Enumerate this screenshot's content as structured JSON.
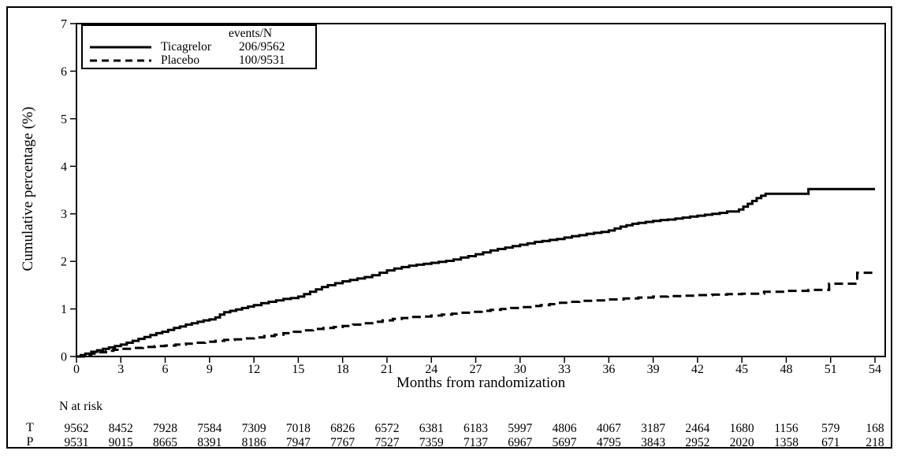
{
  "legend": {
    "header": "events/N",
    "items": [
      {
        "label": "Ticagrelor",
        "events_n": "206/9562",
        "line_style": "solid"
      },
      {
        "label": "Placebo",
        "events_n": "100/9531",
        "line_style": "dashed"
      }
    ]
  },
  "colors": {
    "line": "#000000",
    "text": "#000000",
    "background": "#ffffff",
    "border": "#000000"
  },
  "chart_data": {
    "type": "line",
    "step": true,
    "title": "",
    "xlabel": "Months from randomization",
    "ylabel": "Cumulative percentage (%)",
    "xlim": [
      0,
      54.7
    ],
    "ylim": [
      0,
      7
    ],
    "xticks": [
      0,
      3,
      6,
      9,
      12,
      15,
      18,
      21,
      24,
      27,
      30,
      33,
      36,
      39,
      42,
      45,
      48,
      51,
      54
    ],
    "yticks": [
      0,
      1,
      2,
      3,
      4,
      5,
      6,
      7
    ],
    "grid": false,
    "legend_position": "top-left",
    "series": [
      {
        "name": "Ticagrelor",
        "line_style": "solid",
        "events_n": "206/9562",
        "points": [
          [
            0,
            0
          ],
          [
            0.3,
            0.03
          ],
          [
            0.6,
            0.06
          ],
          [
            1,
            0.1
          ],
          [
            1.4,
            0.13
          ],
          [
            1.8,
            0.16
          ],
          [
            2.2,
            0.19
          ],
          [
            2.6,
            0.22
          ],
          [
            3,
            0.25
          ],
          [
            3.4,
            0.29
          ],
          [
            3.8,
            0.33
          ],
          [
            4.2,
            0.37
          ],
          [
            4.6,
            0.41
          ],
          [
            5,
            0.45
          ],
          [
            5.4,
            0.49
          ],
          [
            5.8,
            0.52
          ],
          [
            6.2,
            0.56
          ],
          [
            6.6,
            0.6
          ],
          [
            7,
            0.63
          ],
          [
            7.4,
            0.67
          ],
          [
            7.8,
            0.7
          ],
          [
            8.2,
            0.73
          ],
          [
            8.6,
            0.76
          ],
          [
            9,
            0.78
          ],
          [
            9.4,
            0.82
          ],
          [
            9.7,
            0.88
          ],
          [
            10,
            0.93
          ],
          [
            10.4,
            0.96
          ],
          [
            10.8,
            0.99
          ],
          [
            11.2,
            1.02
          ],
          [
            11.6,
            1.05
          ],
          [
            12,
            1.08
          ],
          [
            12.5,
            1.12
          ],
          [
            13,
            1.15
          ],
          [
            13.5,
            1.18
          ],
          [
            14,
            1.21
          ],
          [
            14.5,
            1.23
          ],
          [
            15,
            1.26
          ],
          [
            15.4,
            1.31
          ],
          [
            15.8,
            1.36
          ],
          [
            16.2,
            1.41
          ],
          [
            16.6,
            1.46
          ],
          [
            17,
            1.5
          ],
          [
            17.5,
            1.54
          ],
          [
            18,
            1.58
          ],
          [
            18.5,
            1.61
          ],
          [
            19,
            1.64
          ],
          [
            19.5,
            1.67
          ],
          [
            20,
            1.71
          ],
          [
            20.5,
            1.76
          ],
          [
            21,
            1.81
          ],
          [
            21.5,
            1.85
          ],
          [
            22,
            1.88
          ],
          [
            22.5,
            1.91
          ],
          [
            23,
            1.93
          ],
          [
            23.5,
            1.95
          ],
          [
            24,
            1.97
          ],
          [
            24.5,
            1.99
          ],
          [
            25,
            2.01
          ],
          [
            25.5,
            2.04
          ],
          [
            26,
            2.08
          ],
          [
            26.5,
            2.11
          ],
          [
            27,
            2.15
          ],
          [
            27.5,
            2.19
          ],
          [
            28,
            2.23
          ],
          [
            28.5,
            2.26
          ],
          [
            29,
            2.29
          ],
          [
            29.5,
            2.32
          ],
          [
            30,
            2.35
          ],
          [
            30.5,
            2.38
          ],
          [
            31,
            2.41
          ],
          [
            31.5,
            2.43
          ],
          [
            32,
            2.45
          ],
          [
            32.5,
            2.47
          ],
          [
            33,
            2.5
          ],
          [
            33.5,
            2.53
          ],
          [
            34,
            2.55
          ],
          [
            34.5,
            2.58
          ],
          [
            35,
            2.6
          ],
          [
            35.5,
            2.62
          ],
          [
            36,
            2.65
          ],
          [
            36.4,
            2.69
          ],
          [
            36.8,
            2.73
          ],
          [
            37.2,
            2.76
          ],
          [
            37.6,
            2.79
          ],
          [
            38,
            2.81
          ],
          [
            38.5,
            2.83
          ],
          [
            39,
            2.85
          ],
          [
            39.5,
            2.87
          ],
          [
            40,
            2.88
          ],
          [
            40.5,
            2.9
          ],
          [
            41,
            2.92
          ],
          [
            41.5,
            2.94
          ],
          [
            42,
            2.96
          ],
          [
            42.5,
            2.98
          ],
          [
            43,
            3.0
          ],
          [
            43.5,
            3.02
          ],
          [
            44,
            3.05
          ],
          [
            44.8,
            3.09
          ],
          [
            45.1,
            3.15
          ],
          [
            45.4,
            3.21
          ],
          [
            45.7,
            3.27
          ],
          [
            46,
            3.33
          ],
          [
            46.3,
            3.38
          ],
          [
            46.6,
            3.42
          ],
          [
            49.5,
            3.52
          ],
          [
            54,
            3.52
          ]
        ]
      },
      {
        "name": "Placebo",
        "line_style": "dashed",
        "events_n": "100/9531",
        "points": [
          [
            0,
            0
          ],
          [
            0.5,
            0.03
          ],
          [
            1,
            0.06
          ],
          [
            1.5,
            0.09
          ],
          [
            2,
            0.12
          ],
          [
            2.5,
            0.14
          ],
          [
            3,
            0.16
          ],
          [
            3.7,
            0.18
          ],
          [
            4.5,
            0.2
          ],
          [
            5.3,
            0.22
          ],
          [
            6,
            0.23
          ],
          [
            6.7,
            0.25
          ],
          [
            7.4,
            0.27
          ],
          [
            8,
            0.29
          ],
          [
            8.7,
            0.31
          ],
          [
            9.4,
            0.33
          ],
          [
            10,
            0.35
          ],
          [
            10.7,
            0.36
          ],
          [
            11.4,
            0.38
          ],
          [
            12,
            0.4
          ],
          [
            12.7,
            0.43
          ],
          [
            13.4,
            0.46
          ],
          [
            14,
            0.49
          ],
          [
            14.7,
            0.52
          ],
          [
            15.4,
            0.55
          ],
          [
            16,
            0.58
          ],
          [
            16.7,
            0.6
          ],
          [
            17.4,
            0.62
          ],
          [
            18,
            0.64
          ],
          [
            18.7,
            0.67
          ],
          [
            19.4,
            0.7
          ],
          [
            20,
            0.73
          ],
          [
            20.7,
            0.76
          ],
          [
            21.4,
            0.79
          ],
          [
            22,
            0.81
          ],
          [
            22.7,
            0.83
          ],
          [
            23.4,
            0.84
          ],
          [
            24,
            0.86
          ],
          [
            24.7,
            0.88
          ],
          [
            25.4,
            0.9
          ],
          [
            26,
            0.92
          ],
          [
            26.7,
            0.94
          ],
          [
            27.4,
            0.96
          ],
          [
            28,
            0.98
          ],
          [
            28.7,
            1.0
          ],
          [
            29.4,
            1.02
          ],
          [
            30,
            1.04
          ],
          [
            30.7,
            1.06
          ],
          [
            31.4,
            1.08
          ],
          [
            32,
            1.1
          ],
          [
            32.7,
            1.13
          ],
          [
            33.4,
            1.15
          ],
          [
            34,
            1.17
          ],
          [
            35,
            1.18
          ],
          [
            36,
            1.2
          ],
          [
            37,
            1.22
          ],
          [
            38,
            1.24
          ],
          [
            39,
            1.26
          ],
          [
            40,
            1.27
          ],
          [
            41,
            1.28
          ],
          [
            42,
            1.29
          ],
          [
            43,
            1.3
          ],
          [
            44,
            1.31
          ],
          [
            45,
            1.32
          ],
          [
            46.5,
            1.36
          ],
          [
            48,
            1.38
          ],
          [
            49.5,
            1.4
          ],
          [
            50.9,
            1.53
          ],
          [
            52.8,
            1.76
          ],
          [
            54,
            1.76
          ]
        ]
      }
    ],
    "at_risk": {
      "label": "N at risk",
      "rows": [
        {
          "label": "T",
          "values": [
            9562,
            8452,
            7928,
            7584,
            7309,
            7018,
            6826,
            6572,
            6381,
            6183,
            5997,
            4806,
            4067,
            3187,
            2464,
            1680,
            1156,
            579,
            168
          ]
        },
        {
          "label": "P",
          "values": [
            9531,
            9015,
            8665,
            8391,
            8186,
            7947,
            7767,
            7527,
            7359,
            7137,
            6967,
            5697,
            4795,
            3843,
            2952,
            2020,
            1358,
            671,
            218
          ]
        }
      ]
    }
  }
}
